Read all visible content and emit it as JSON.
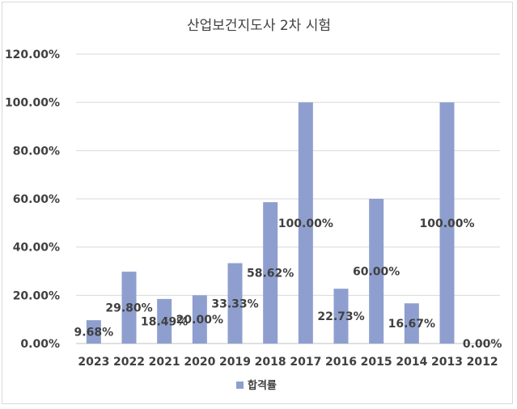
{
  "chart_data": {
    "type": "bar",
    "title": "산업보건지도사 2차 시험",
    "xlabel": "",
    "ylabel": "",
    "categories": [
      "2023",
      "2022",
      "2021",
      "2020",
      "2019",
      "2018",
      "2017",
      "2016",
      "2015",
      "2014",
      "2013",
      "2012"
    ],
    "series": [
      {
        "name": "합격률",
        "values": [
          9.68,
          29.8,
          18.49,
          20.0,
          33.33,
          58.62,
          100.0,
          22.73,
          60.0,
          16.67,
          100.0,
          0.0
        ],
        "labels": [
          "9.68%",
          "29.80%",
          "18.49%",
          "20.00%",
          "33.33%",
          "58.62%",
          "100.00%",
          "22.73%",
          "60.00%",
          "16.67%",
          "100.00%",
          "0.00%"
        ],
        "color": "#8e9fcf"
      }
    ],
    "ylim": [
      0,
      120
    ],
    "yticks": [
      0,
      20,
      40,
      60,
      80,
      100,
      120
    ],
    "ytick_labels": [
      "0.00%",
      "20.00%",
      "40.00%",
      "60.00%",
      "80.00%",
      "100.00%",
      "120.00%"
    ],
    "grid": true,
    "legend_position": "bottom"
  }
}
